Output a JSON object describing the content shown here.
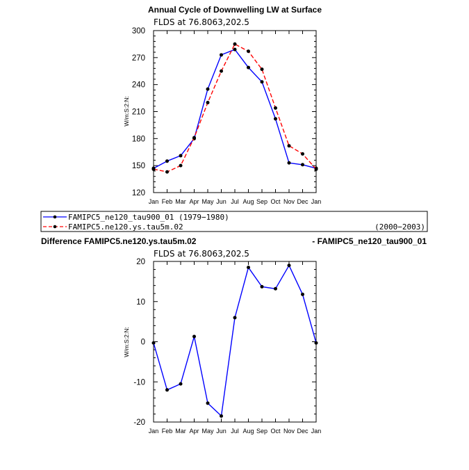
{
  "chart_data": [
    {
      "type": "line",
      "title": "Annual Cycle of Downwelling LW at Surface",
      "subtitle": "FLDS at 76.8063,202.5",
      "ylabel": "W/m:S:2:N:",
      "xlabel": "",
      "categories": [
        "Jan",
        "Feb",
        "Mar",
        "Apr",
        "May",
        "Jun",
        "Jul",
        "Aug",
        "Sep",
        "Oct",
        "Nov",
        "Dec",
        "Jan"
      ],
      "ylim": [
        120,
        300
      ],
      "yticks": [
        120,
        150,
        180,
        210,
        240,
        270,
        300
      ],
      "grid": false,
      "series": [
        {
          "name": "FAMIPC5_ne120_tau900_01 (1979-1980)",
          "color": "#0000ff",
          "style": "solid",
          "values": [
            147,
            155,
            161,
            180,
            235,
            273,
            279,
            259,
            243,
            202,
            153,
            151,
            147
          ]
        },
        {
          "name": "FAMIPC5.ne120.ys.tau5m.02",
          "color": "#ff0000",
          "style": "dashed",
          "values": [
            146,
            143,
            150,
            181,
            220,
            255,
            285,
            277,
            257,
            214,
            172,
            163,
            146
          ]
        }
      ]
    },
    {
      "type": "line",
      "title_left": "Difference FAMIPC5.ne120.ys.tau5m.02",
      "title_right": "- FAMIPC5_ne120_tau900_01",
      "subtitle": "FLDS at 76.8063,202.5",
      "ylabel": "W/m:S:2:N:",
      "xlabel": "",
      "categories": [
        "Jan",
        "Feb",
        "Mar",
        "Apr",
        "May",
        "Jun",
        "Jul",
        "Aug",
        "Sep",
        "Oct",
        "Nov",
        "Dec",
        "Jan"
      ],
      "ylim": [
        -20,
        20
      ],
      "yticks": [
        -20,
        -10,
        0,
        10,
        20
      ],
      "grid": false,
      "series": [
        {
          "name": "Difference",
          "color": "#0000ff",
          "style": "solid",
          "values": [
            -0.3,
            -12,
            -10.5,
            1.3,
            -15.3,
            -18.5,
            6,
            18.5,
            13.7,
            13.2,
            19,
            11.8,
            -0.3
          ]
        }
      ]
    }
  ],
  "legend": {
    "entries": [
      {
        "label": "FAMIPC5_ne120_tau900_01 (1979−1980)",
        "right": ""
      },
      {
        "label": "FAMIPC5.ne120.ys.tau5m.02",
        "right": "(2000−2003)"
      }
    ]
  }
}
